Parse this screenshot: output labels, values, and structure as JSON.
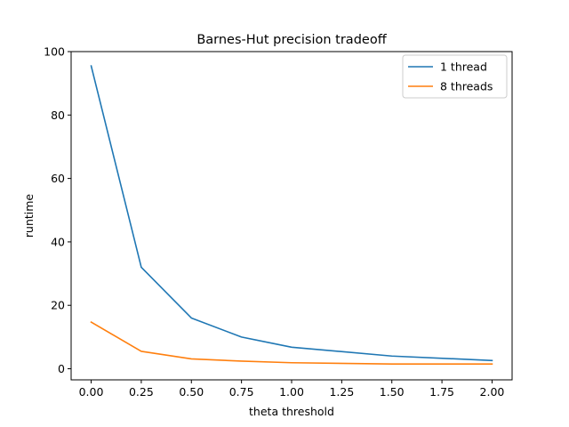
{
  "chart_data": {
    "type": "line",
    "title": "Barnes-Hut precision tradeoff",
    "xlabel": "theta threshold",
    "ylabel": "runtime",
    "xlim": [
      -0.1,
      2.1
    ],
    "ylim": [
      -3.5,
      100
    ],
    "xticks": [
      0.0,
      0.25,
      0.5,
      0.75,
      1.0,
      1.25,
      1.5,
      1.75,
      2.0
    ],
    "xtick_labels": [
      "0.00",
      "0.25",
      "0.50",
      "0.75",
      "1.00",
      "1.25",
      "1.50",
      "1.75",
      "2.00"
    ],
    "yticks": [
      0,
      20,
      40,
      60,
      80,
      100
    ],
    "ytick_labels": [
      "0",
      "20",
      "40",
      "60",
      "80",
      "100"
    ],
    "grid": false,
    "legend_position": "top-right",
    "x": [
      0.0,
      0.25,
      0.5,
      0.75,
      1.0,
      1.5,
      2.0
    ],
    "series": [
      {
        "name": "1 thread",
        "color": "#1f77b4",
        "values": [
          95.5,
          32.0,
          16.0,
          10.0,
          6.8,
          4.0,
          2.6
        ]
      },
      {
        "name": "8 threads",
        "color": "#ff7f0e",
        "values": [
          14.7,
          5.5,
          3.1,
          2.4,
          1.9,
          1.5,
          1.5
        ]
      }
    ]
  }
}
